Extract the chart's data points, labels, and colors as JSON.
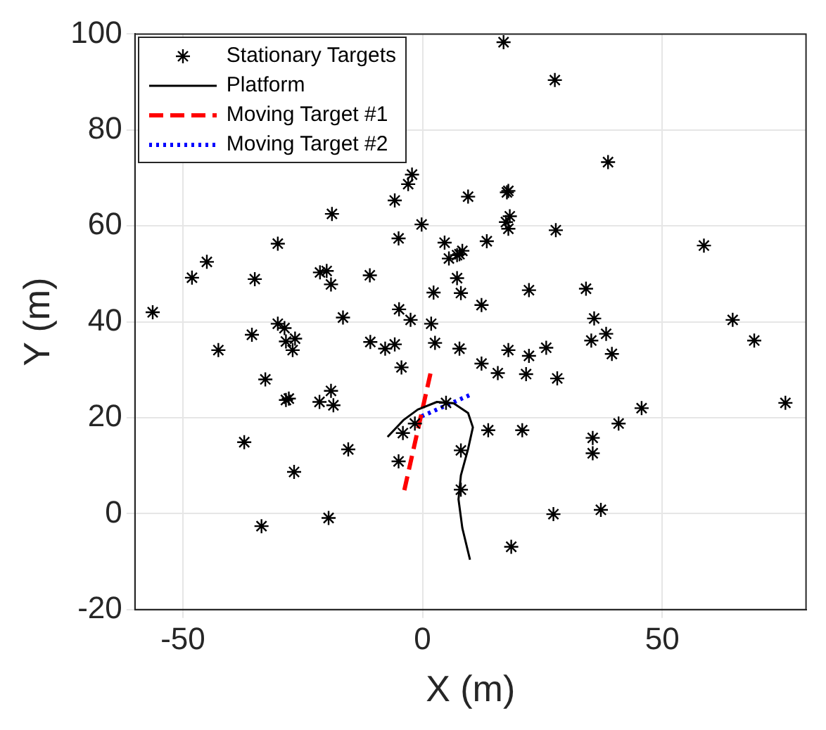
{
  "chart_data": {
    "type": "scatter",
    "xlabel": "X (m)",
    "ylabel": "Y (m)",
    "xlim": [
      -60,
      80
    ],
    "xticks": [
      -50,
      0,
      50
    ],
    "ylim": [
      -20,
      100
    ],
    "yticks": [
      -20,
      0,
      20,
      40,
      60,
      80,
      100
    ],
    "grid": true,
    "legend": "top left",
    "series": [
      {
        "name": "Stationary Targets",
        "color": "#000000",
        "marker": "cross",
        "x": [
          16.9,
          27.6,
          38.7,
          9.5,
          17.9,
          17.6,
          18.2,
          17.4,
          17.9,
          27.8,
          13.4,
          8.3,
          7.2,
          7.2,
          8,
          12.3,
          22.2,
          34.1,
          35.8,
          38.3,
          35.2,
          39.5,
          58.7,
          64.7,
          69.2,
          7.7,
          17.9,
          22.2,
          25.8,
          12.3,
          -2.2,
          -3,
          -5.8,
          -18.9,
          -0.2,
          -30.2,
          -5,
          4.6,
          5.5,
          7.7,
          -45,
          -48.1,
          -35,
          -21.4,
          -20,
          -19.1,
          -11,
          2.3,
          -56.3,
          -4.9,
          -2.5,
          -16.6,
          1.8,
          -35.6,
          -30.2,
          -28.8,
          -28.5,
          -26.6,
          -27.1,
          -42.6,
          -10.9,
          -7.8,
          -5.8,
          2.6,
          -4.4,
          -32.8,
          -28.5,
          -27.9,
          -21.5,
          -19.1,
          -18.6,
          -37.2,
          -15.5,
          -26.8,
          -33.6,
          -19.6,
          -4.1,
          -5,
          -1.6,
          4.9,
          8,
          8,
          15.7,
          21.6,
          28.1,
          45.7,
          75.7,
          40.9,
          13.7,
          20.8,
          35.5,
          35.5,
          27.3,
          37.2,
          18.5
        ],
        "values": [
          98.3,
          90.4,
          73.3,
          66.1,
          67.3,
          67,
          62,
          60.8,
          59.4,
          59.1,
          56.8,
          54.8,
          53.9,
          49.1,
          46,
          43.5,
          46.6,
          46.9,
          40.7,
          37.5,
          36.1,
          33.3,
          55.9,
          40.4,
          36.1,
          34.4,
          34.1,
          32.9,
          34.6,
          31.3,
          70.7,
          68.7,
          65.3,
          62.5,
          60.3,
          56.3,
          57.4,
          56.5,
          53.2,
          54.1,
          52.5,
          49.2,
          48.9,
          50.3,
          50.6,
          47.8,
          49.7,
          46.1,
          42,
          42.6,
          40.4,
          40.9,
          39.6,
          37.3,
          39.6,
          38.7,
          35.9,
          36.5,
          34.1,
          34.1,
          35.8,
          34.4,
          35.3,
          35.6,
          30.5,
          28,
          23.7,
          24,
          23.3,
          25.6,
          22.6,
          14.9,
          13.4,
          8.7,
          -2.6,
          -0.9,
          16.8,
          10.9,
          18.8,
          23.1,
          13.2,
          5,
          29.3,
          29.1,
          28.2,
          22,
          23.1,
          18.8,
          17.4,
          17.4,
          15.8,
          12.6,
          -0.1,
          0.8,
          -6.9
        ]
      },
      {
        "name": "Platform",
        "type": "line",
        "color": "#000000",
        "line_style": "solid",
        "marker": "none",
        "x": [
          -7.3,
          -4,
          -1,
          3,
          6.5,
          9.5,
          10.5,
          9.5,
          8,
          7.5,
          8.3,
          9.9
        ],
        "values": [
          16,
          19.5,
          21.7,
          23.3,
          23,
          21,
          18,
          13.5,
          8,
          3,
          -3,
          -9.6
        ]
      },
      {
        "name": "Moving Target #1",
        "type": "line",
        "color": "#ff0000",
        "line_style": "dashed",
        "marker": "none",
        "x": [
          -3.8,
          1.8
        ],
        "values": [
          4.9,
          29.9
        ]
      },
      {
        "name": "Moving Target #2",
        "type": "line",
        "color": "#0000ff",
        "line_style": "dotted",
        "marker": "none",
        "x": [
          -0.2,
          10
        ],
        "values": [
          20.3,
          24.8
        ]
      }
    ]
  }
}
